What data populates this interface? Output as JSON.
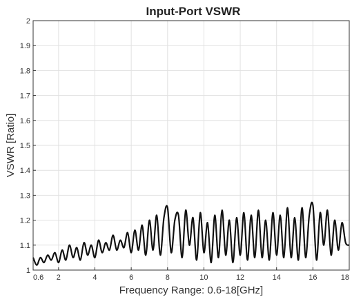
{
  "chart_data": {
    "type": "line",
    "title": "Input-Port VSWR",
    "xlabel": "Frequency Range: 0.6-18[GHz]",
    "ylabel": "VSWR [Ratio]",
    "xlim": [
      0.6,
      18
    ],
    "ylim": [
      1,
      2
    ],
    "xticks": [
      0.6,
      2,
      4,
      6,
      8,
      10,
      12,
      14,
      16,
      18
    ],
    "xtick_labels": [
      "0.6",
      "2",
      "4",
      "6",
      "8",
      "10",
      "12",
      "14",
      "16",
      "18"
    ],
    "yticks": [
      1,
      1.1,
      1.2,
      1.3,
      1.4,
      1.5,
      1.6,
      1.7,
      1.8,
      1.9,
      2
    ],
    "ytick_labels": [
      "1",
      "1.1",
      "1.2",
      "1.3",
      "1.4",
      "1.5",
      "1.6",
      "1.7",
      "1.8",
      "1.9",
      "2"
    ],
    "grid": true,
    "series": [
      {
        "color": "#111111",
        "x": [
          0.6,
          0.8,
          1.0,
          1.2,
          1.4,
          1.6,
          1.8,
          2.0,
          2.2,
          2.4,
          2.6,
          2.8,
          3.0,
          3.2,
          3.4,
          3.6,
          3.8,
          4.0,
          4.2,
          4.4,
          4.6,
          4.8,
          5.0,
          5.2,
          5.4,
          5.6,
          5.8,
          6.0,
          6.2,
          6.4,
          6.6,
          6.8,
          7.0,
          7.2,
          7.4,
          7.6,
          7.8,
          8.0,
          8.2,
          8.4,
          8.6,
          8.8,
          9.0,
          9.2,
          9.4,
          9.6,
          9.8,
          10.0,
          10.2,
          10.4,
          10.6,
          10.8,
          11.0,
          11.2,
          11.4,
          11.6,
          11.8,
          12.0,
          12.2,
          12.4,
          12.6,
          12.8,
          13.0,
          13.2,
          13.4,
          13.6,
          13.8,
          14.0,
          14.2,
          14.4,
          14.6,
          14.8,
          15.0,
          15.2,
          15.4,
          15.6,
          15.8,
          16.0,
          16.2,
          16.4,
          16.6,
          16.8,
          17.0,
          17.2,
          17.4,
          17.6,
          17.8,
          18.0
        ],
        "values": [
          1.05,
          1.02,
          1.05,
          1.03,
          1.06,
          1.04,
          1.07,
          1.03,
          1.08,
          1.04,
          1.1,
          1.05,
          1.09,
          1.04,
          1.11,
          1.06,
          1.1,
          1.05,
          1.12,
          1.07,
          1.11,
          1.08,
          1.14,
          1.08,
          1.12,
          1.09,
          1.15,
          1.07,
          1.16,
          1.08,
          1.18,
          1.06,
          1.2,
          1.08,
          1.22,
          1.06,
          1.21,
          1.25,
          1.07,
          1.2,
          1.22,
          1.05,
          1.24,
          1.1,
          1.21,
          1.04,
          1.23,
          1.07,
          1.19,
          1.03,
          1.22,
          1.05,
          1.24,
          1.06,
          1.2,
          1.03,
          1.21,
          1.06,
          1.23,
          1.04,
          1.22,
          1.05,
          1.24,
          1.05,
          1.2,
          1.04,
          1.23,
          1.06,
          1.22,
          1.05,
          1.25,
          1.05,
          1.21,
          1.04,
          1.25,
          1.05,
          1.22,
          1.26,
          1.04,
          1.23,
          1.1,
          1.24,
          1.06,
          1.2,
          1.08,
          1.19,
          1.11,
          1.1
        ]
      }
    ]
  }
}
